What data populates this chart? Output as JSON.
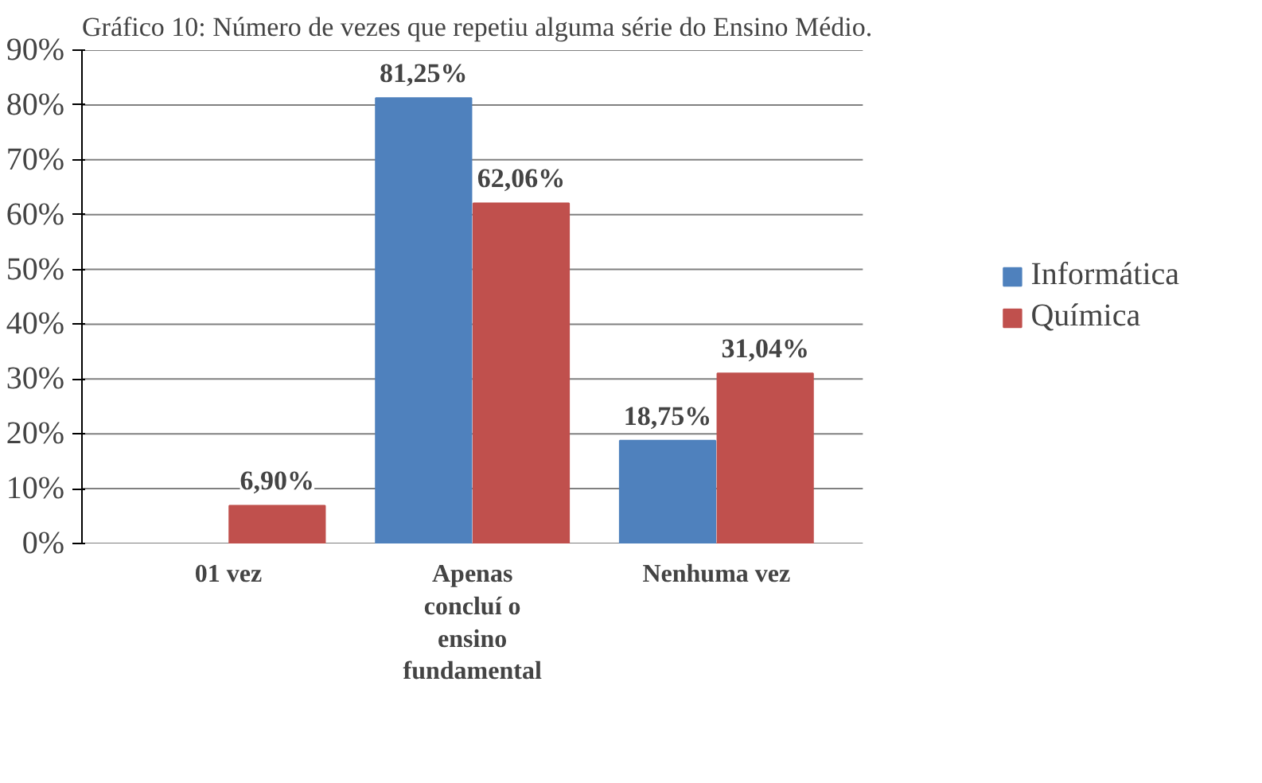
{
  "chart_data": {
    "type": "bar",
    "title": "Gráfico 10: Número de vezes que repetiu alguma série do Ensino Médio.",
    "categories": [
      "01 vez",
      "Apenas concluí o ensino fundamental",
      "Nenhuma vez"
    ],
    "series": [
      {
        "name": "Informática",
        "color": "#4f81bd",
        "values": [
          null,
          81.25,
          18.75
        ],
        "value_labels": [
          null,
          "81,25%",
          "18,75%"
        ]
      },
      {
        "name": "Química",
        "color": "#c0504d",
        "values": [
          6.9,
          62.06,
          31.04
        ],
        "value_labels": [
          "6,90%",
          "62,06%",
          "31,04%"
        ]
      }
    ],
    "ylim": [
      0,
      90
    ],
    "yticks": [
      {
        "value": 0,
        "label": "0%"
      },
      {
        "value": 10,
        "label": "10%"
      },
      {
        "value": 20,
        "label": "20%"
      },
      {
        "value": 30,
        "label": "30%"
      },
      {
        "value": 40,
        "label": "40%"
      },
      {
        "value": 50,
        "label": "50%"
      },
      {
        "value": 60,
        "label": "60%"
      },
      {
        "value": 70,
        "label": "70%"
      },
      {
        "value": 80,
        "label": "80%"
      },
      {
        "value": 90,
        "label": "90%"
      }
    ],
    "grid": "y",
    "legend": "right"
  }
}
